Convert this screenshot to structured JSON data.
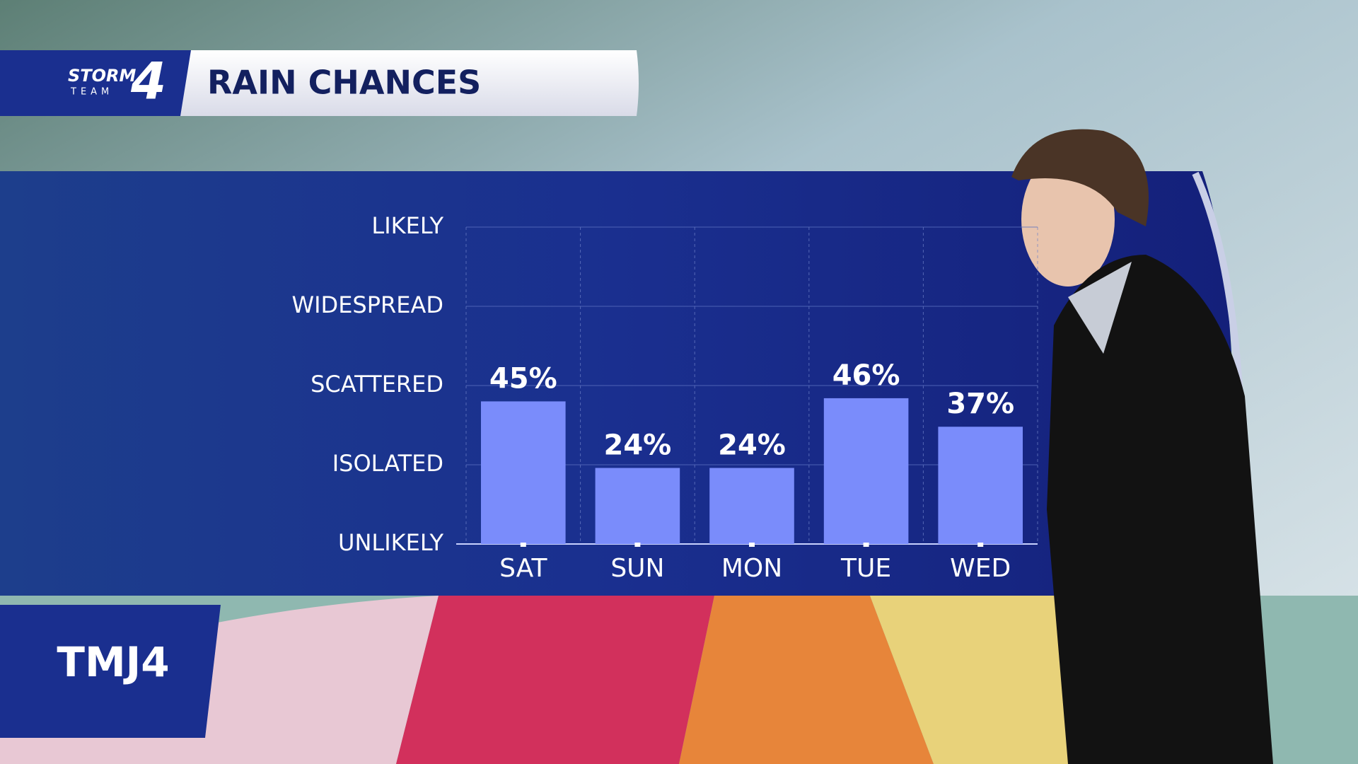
{
  "branding": {
    "storm": "STORM",
    "team": "TEAM",
    "number": "4",
    "station": "TMJ4"
  },
  "chart_data": {
    "type": "bar",
    "title": "RAIN CHANCES",
    "categories": [
      "SAT",
      "SUN",
      "MON",
      "TUE",
      "WED"
    ],
    "values": [
      45,
      24,
      24,
      46,
      37
    ],
    "value_labels": [
      "45%",
      "24%",
      "24%",
      "46%",
      "37%"
    ],
    "color": "#7a8cfb",
    "ylim": [
      0,
      100
    ],
    "yticks": [
      {
        "value": 0,
        "label": "UNLIKELY"
      },
      {
        "value": 25,
        "label": "ISOLATED"
      },
      {
        "value": 50,
        "label": "SCATTERED"
      },
      {
        "value": 75,
        "label": "WIDESPREAD"
      },
      {
        "value": 100,
        "label": "LIKELY"
      }
    ],
    "grid": true
  }
}
